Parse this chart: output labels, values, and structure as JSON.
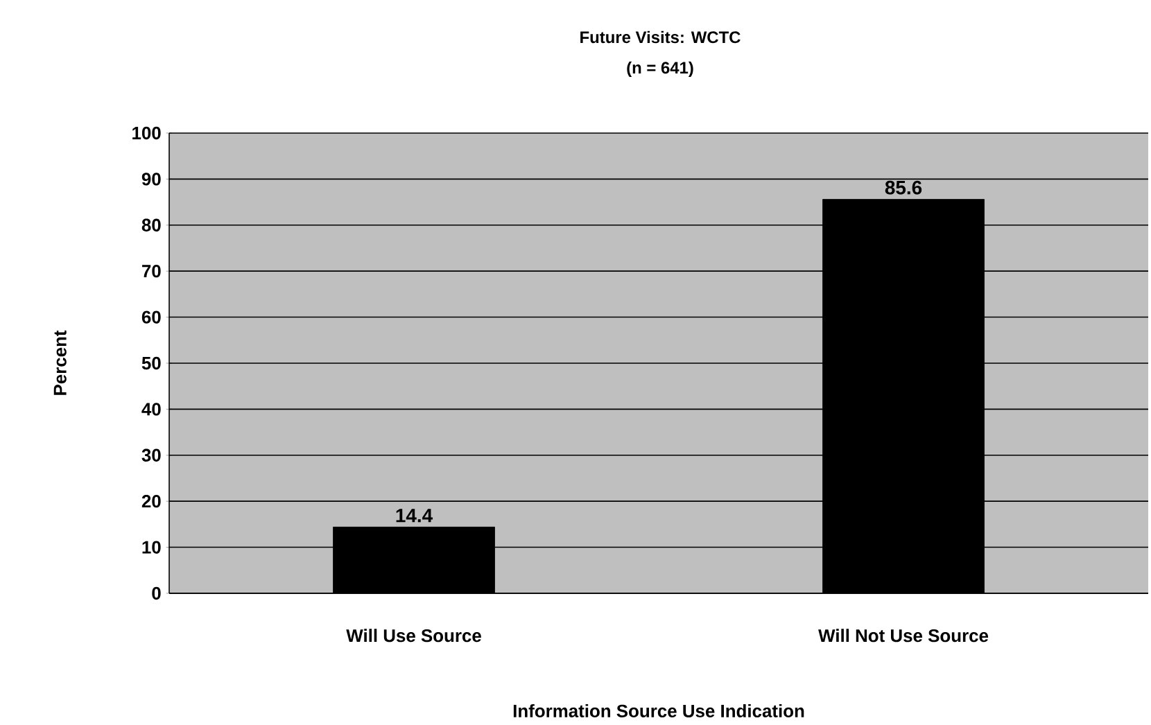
{
  "chart_data": {
    "type": "bar",
    "title": "Future Visits: WCTC",
    "subtitle": "(n = 641)",
    "xlabel": "Information Source Use Indication",
    "ylabel": "Percent",
    "categories": [
      "Will Use Source",
      "Will Not Use Source"
    ],
    "values": [
      14.4,
      85.6
    ],
    "color": "#000000",
    "ylim": [
      0,
      100
    ],
    "yticks": [
      0,
      10,
      20,
      30,
      40,
      50,
      60,
      70,
      80,
      90,
      100
    ],
    "grid": "y",
    "data_labels": true
  }
}
